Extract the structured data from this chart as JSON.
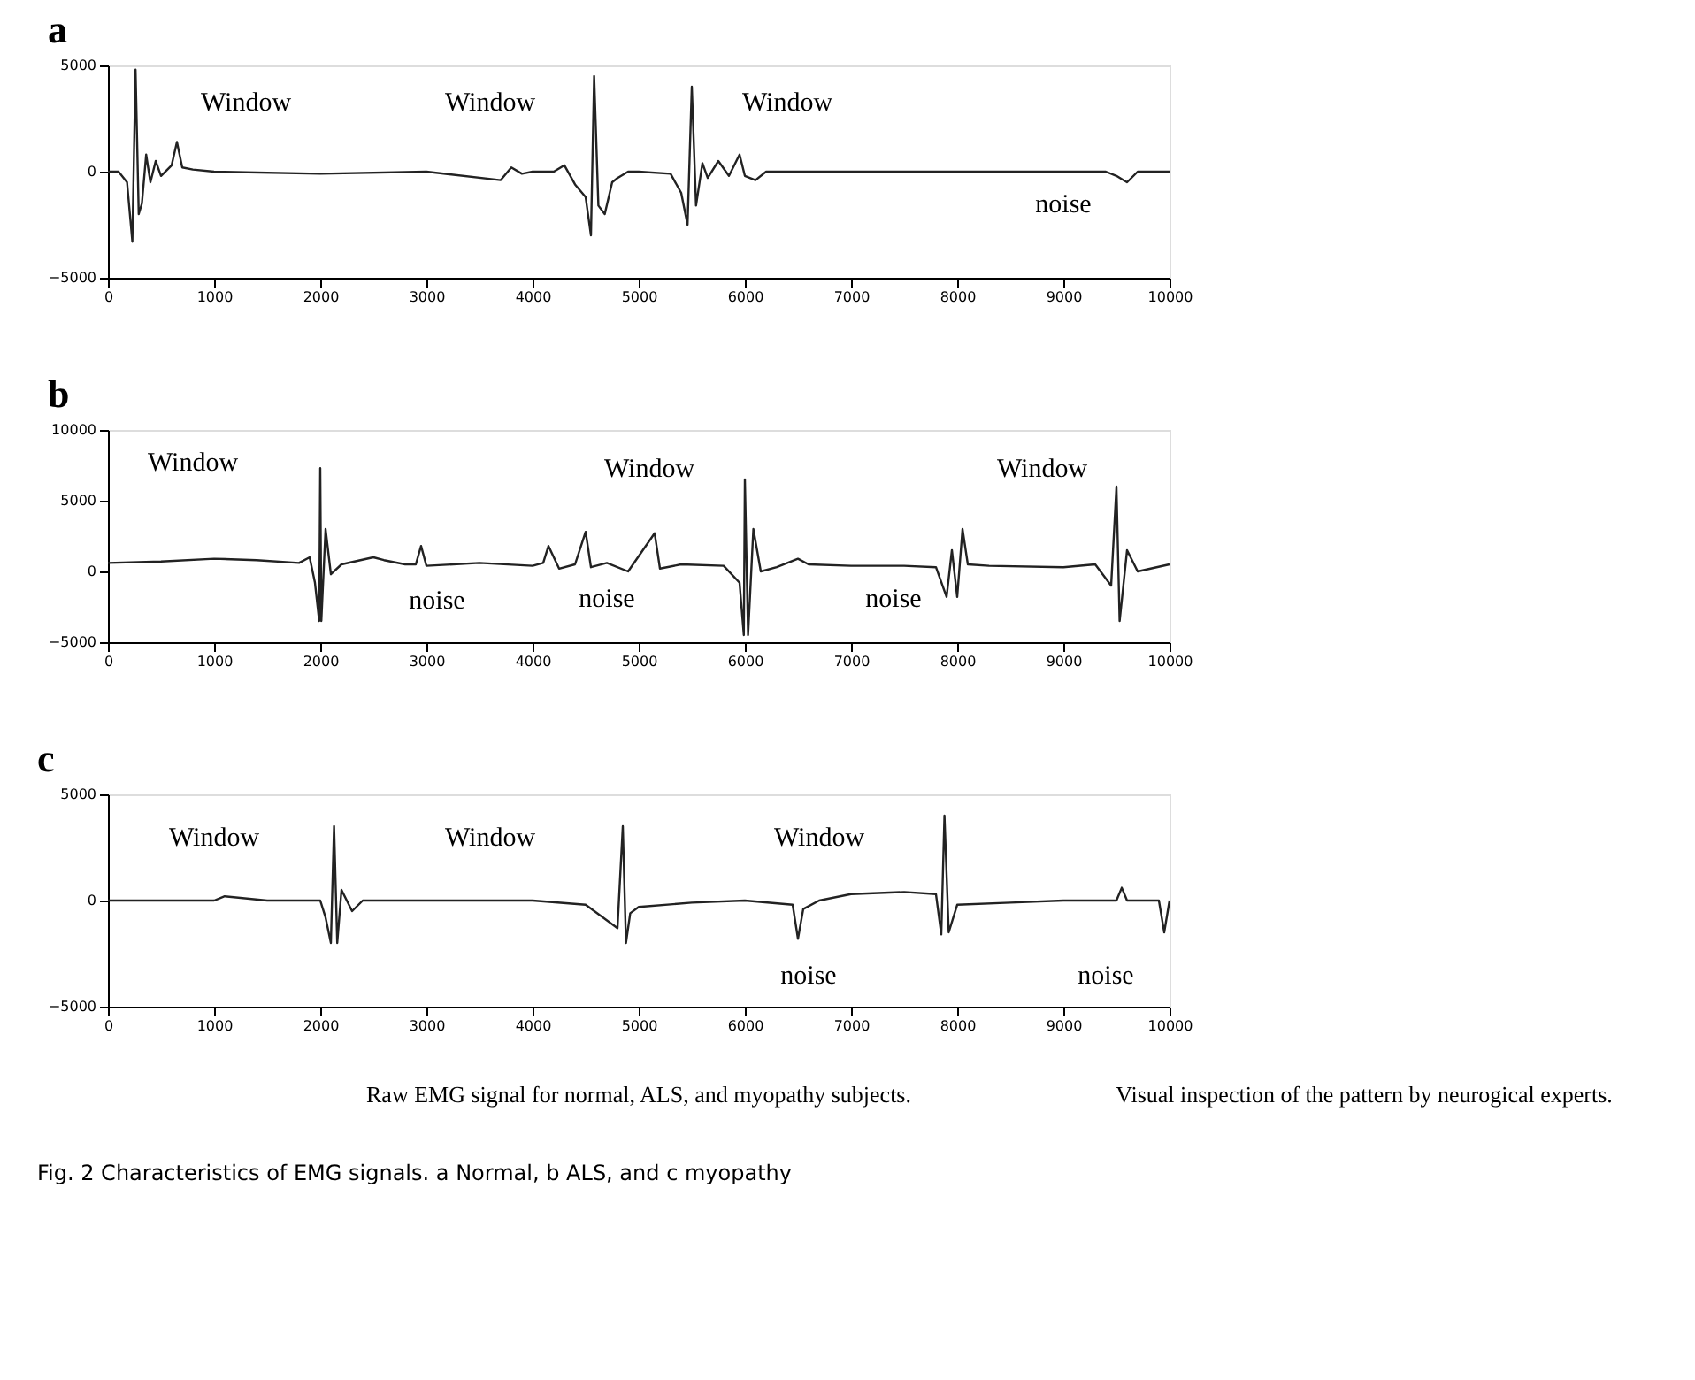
{
  "chart_data": [
    {
      "type": "line",
      "title": "a",
      "xlim": [
        0,
        10000
      ],
      "xticks": [
        0,
        1000,
        2000,
        3000,
        4000,
        5000,
        6000,
        7000,
        8000,
        9000,
        10000
      ],
      "ylim": [
        -5000,
        5000
      ],
      "yticks": [
        -5000,
        0,
        5000
      ],
      "grid": false,
      "marker": "none",
      "line_style": "solid",
      "series": [
        {
          "color": "#222222",
          "x": [
            0,
            100,
            180,
            230,
            260,
            290,
            320,
            360,
            400,
            450,
            500,
            600,
            650,
            700,
            800,
            1000,
            2000,
            3000,
            3700,
            3800,
            3900,
            4000,
            4200,
            4300,
            4400,
            4500,
            4550,
            4580,
            4620,
            4680,
            4750,
            4800,
            4900,
            5000,
            5300,
            5400,
            5460,
            5500,
            5540,
            5600,
            5650,
            5750,
            5850,
            5950,
            6000,
            6100,
            6200,
            7000,
            8000,
            9000,
            9400,
            9500,
            9600,
            9700,
            10000
          ],
          "values": [
            0,
            0,
            -500,
            -3300,
            4800,
            -2000,
            -1500,
            800,
            -500,
            500,
            -200,
            300,
            1400,
            200,
            100,
            0,
            -100,
            0,
            -400,
            200,
            -100,
            0,
            0,
            300,
            -600,
            -1200,
            -3000,
            4500,
            -1600,
            -2000,
            -500,
            -300,
            0,
            0,
            -100,
            -1000,
            -2500,
            4000,
            -1600,
            400,
            -300,
            500,
            -200,
            800,
            -200,
            -400,
            0,
            0,
            0,
            0,
            0,
            -200,
            -500,
            0,
            0
          ]
        }
      ],
      "annotations": [
        "Window",
        "Window",
        "Window",
        "noise"
      ]
    },
    {
      "type": "line",
      "title": "b",
      "xlim": [
        0,
        10000
      ],
      "xticks": [
        0,
        1000,
        2000,
        3000,
        4000,
        5000,
        6000,
        7000,
        8000,
        9000,
        10000
      ],
      "ylim": [
        -5000,
        10000
      ],
      "yticks": [
        -5000,
        0,
        5000,
        10000
      ],
      "grid": false,
      "marker": "none",
      "line_style": "solid",
      "series": [
        {
          "color": "#222222",
          "x": [
            0,
            500,
            1000,
            1400,
            1800,
            1900,
            1950,
            1990,
            2000,
            2010,
            2050,
            2100,
            2200,
            2500,
            2600,
            2800,
            2900,
            2950,
            3000,
            3500,
            4000,
            4100,
            4150,
            4250,
            4400,
            4500,
            4550,
            4700,
            4900,
            5150,
            5200,
            5400,
            5800,
            5950,
            5990,
            6000,
            6030,
            6080,
            6150,
            6300,
            6500,
            6600,
            7000,
            7500,
            7800,
            7900,
            7950,
            8000,
            8050,
            8100,
            8300,
            9000,
            9300,
            9450,
            9500,
            9530,
            9600,
            9700,
            10000
          ],
          "values": [
            600,
            700,
            900,
            800,
            600,
            1000,
            -800,
            -3500,
            7300,
            -3500,
            3000,
            -200,
            500,
            1000,
            800,
            500,
            500,
            1800,
            400,
            600,
            400,
            600,
            1800,
            200,
            500,
            2800,
            300,
            600,
            0,
            2700,
            200,
            500,
            400,
            -800,
            -4500,
            6500,
            -4500,
            3000,
            0,
            300,
            900,
            500,
            400,
            400,
            300,
            -1800,
            1500,
            -1800,
            3000,
            500,
            400,
            300,
            500,
            -1000,
            6000,
            -3500,
            1500,
            0,
            500
          ]
        }
      ],
      "annotations": [
        "Window",
        "noise",
        "noise",
        "Window",
        "noise",
        "Window"
      ]
    },
    {
      "type": "line",
      "title": "c",
      "xlim": [
        0,
        10000
      ],
      "xticks": [
        0,
        1000,
        2000,
        3000,
        4000,
        5000,
        6000,
        7000,
        8000,
        9000,
        10000
      ],
      "ylim": [
        -5000,
        5000
      ],
      "yticks": [
        -5000,
        0,
        5000
      ],
      "grid": false,
      "marker": "none",
      "line_style": "solid",
      "series": [
        {
          "color": "#222222",
          "x": [
            0,
            1000,
            1100,
            1500,
            2000,
            2050,
            2100,
            2130,
            2160,
            2200,
            2300,
            2400,
            3000,
            4000,
            4500,
            4800,
            4850,
            4880,
            4920,
            5000,
            5500,
            6000,
            6450,
            6500,
            6550,
            6700,
            7000,
            7500,
            7800,
            7850,
            7880,
            7920,
            8000,
            8500,
            9000,
            9500,
            9550,
            9600,
            9900,
            9950,
            10000
          ],
          "values": [
            0,
            0,
            200,
            0,
            0,
            -800,
            -2000,
            3500,
            -2000,
            500,
            -500,
            0,
            0,
            0,
            -200,
            -1300,
            3500,
            -2000,
            -600,
            -300,
            -100,
            0,
            -200,
            -1800,
            -400,
            0,
            300,
            400,
            300,
            -1600,
            4000,
            -1500,
            -200,
            -100,
            0,
            0,
            600,
            0,
            0,
            -1500,
            0
          ]
        }
      ],
      "annotations": [
        "Window",
        "Window",
        "Window",
        "noise",
        "noise",
        "Raw EMG signal for normal, ALS, and myopathy subjects.",
        "Visual inspection of the pattern by neurogical experts.",
        "Fig. 2  Characteristics of EMG signals. a Normal, b ALS, and c myopathy"
      ]
    }
  ]
}
